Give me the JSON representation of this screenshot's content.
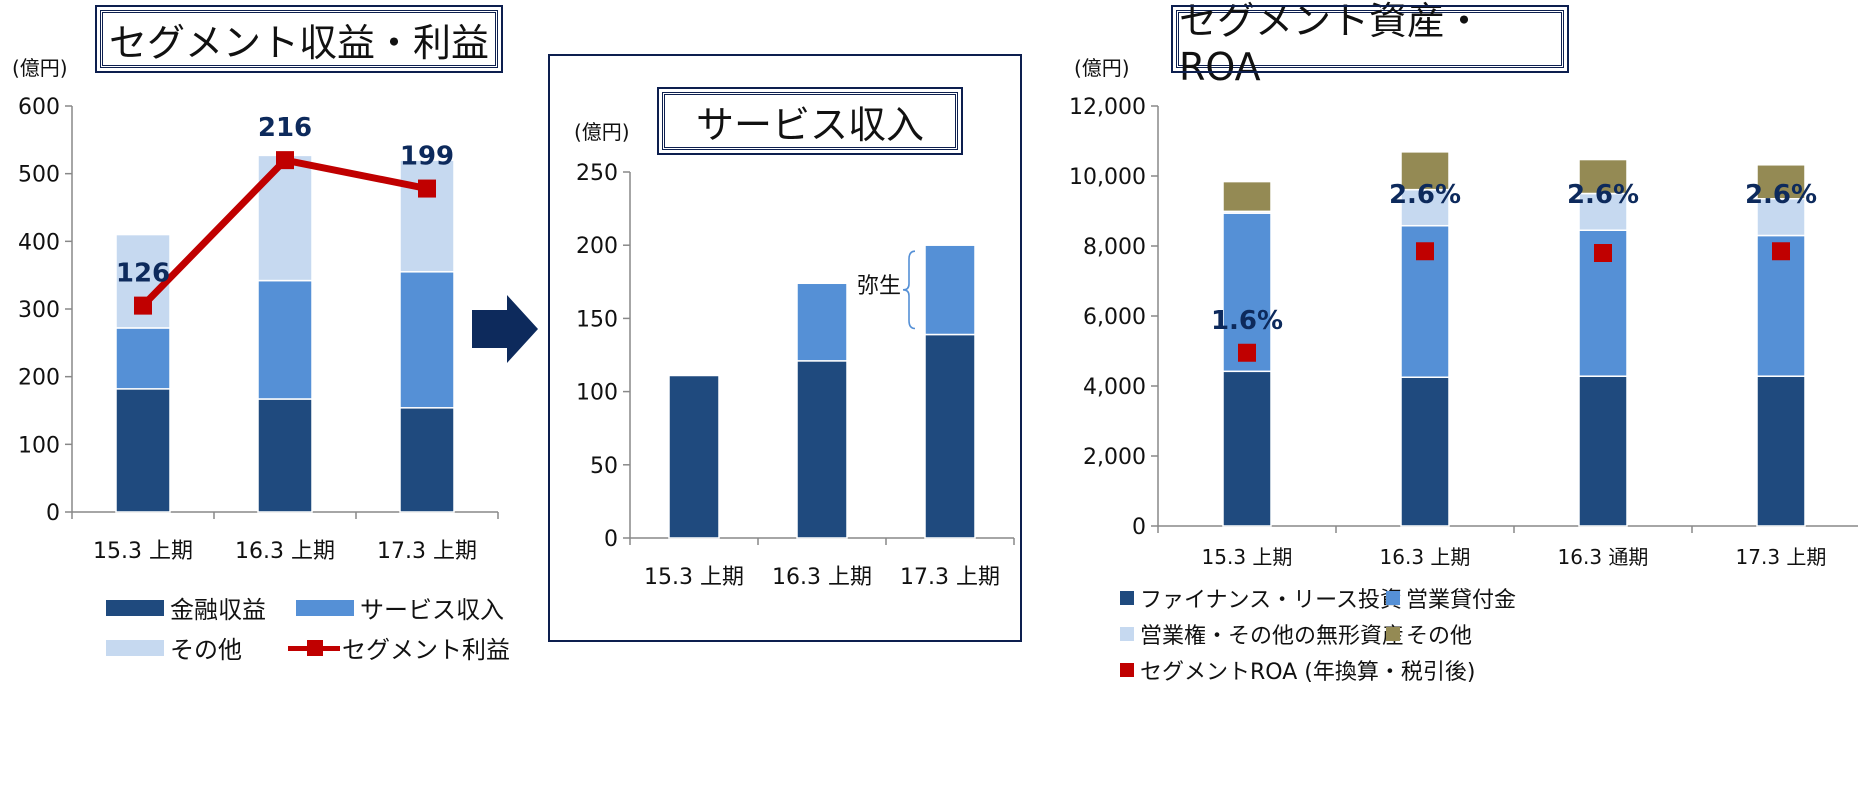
{
  "colors": {
    "navy": "#1f4a7e",
    "mid_blue": "#5590d6",
    "light_blue": "#c6d9f0",
    "olive": "#948a54",
    "red": "#c00000",
    "frame": "#0d1f4f"
  },
  "arrow_icon": "right-arrow",
  "chart_data": [
    {
      "type": "bar",
      "title": "セグメント収益・利益",
      "unit_label": "(億円)",
      "categories": [
        "15.3 上期",
        "16.3 上期",
        "17.3 上期"
      ],
      "ylim": [
        0,
        600
      ],
      "yticks": [
        "0",
        "100",
        "200",
        "300",
        "400",
        "500",
        "600"
      ],
      "stacked": true,
      "series": [
        {
          "name": "金融収益",
          "values": [
            182,
            167,
            154
          ]
        },
        {
          "name": "サービス収入",
          "values": [
            90,
            175,
            201
          ]
        },
        {
          "name": "その他",
          "values": [
            138,
            185,
            165
          ]
        }
      ],
      "line_series": {
        "name": "セグメント利益",
        "values": [
          126,
          216,
          199
        ],
        "plotted_on_axis": [
          305,
          520,
          478
        ]
      }
    },
    {
      "type": "bar",
      "title": "サービス収入",
      "unit_label": "(億円)",
      "categories": [
        "15.3 上期",
        "16.3 上期",
        "17.3 上期"
      ],
      "ylim": [
        0,
        250
      ],
      "yticks": [
        "0",
        "50",
        "100",
        "150",
        "200",
        "250"
      ],
      "stacked": true,
      "series": [
        {
          "values": [
            111,
            121,
            139
          ]
        },
        {
          "values": [
            0,
            53,
            61
          ]
        }
      ],
      "annotation": "弥生"
    },
    {
      "type": "bar",
      "title": "セグメント資産・ROA",
      "unit_label": "(億円)",
      "categories": [
        "15.3 上期",
        "16.3 上期",
        "16.3 通期",
        "17.3 上期"
      ],
      "ylim": [
        0,
        12000
      ],
      "yticks": [
        "0",
        "2,000",
        "4,000",
        "6,000",
        "8,000",
        "10,000",
        "12,000"
      ],
      "stacked": true,
      "series": [
        {
          "name": "ファイナンス・リース投資",
          "values": [
            4420,
            4250,
            4280,
            4280
          ]
        },
        {
          "name": "営業貸付金",
          "values": [
            4520,
            4330,
            4170,
            4020
          ]
        },
        {
          "name": "営業権・その他の無形資産",
          "values": [
            50,
            1030,
            1050,
            1050
          ]
        },
        {
          "name": "その他",
          "values": [
            850,
            1080,
            970,
            970
          ]
        }
      ],
      "roa_series": {
        "name": "セグメントROA (年換算・税引後)",
        "labels": [
          "1.6%",
          "2.6%",
          "2.6%",
          "2.6%"
        ],
        "plotted_on_axis": [
          4950,
          7850,
          7800,
          7850
        ]
      }
    }
  ]
}
